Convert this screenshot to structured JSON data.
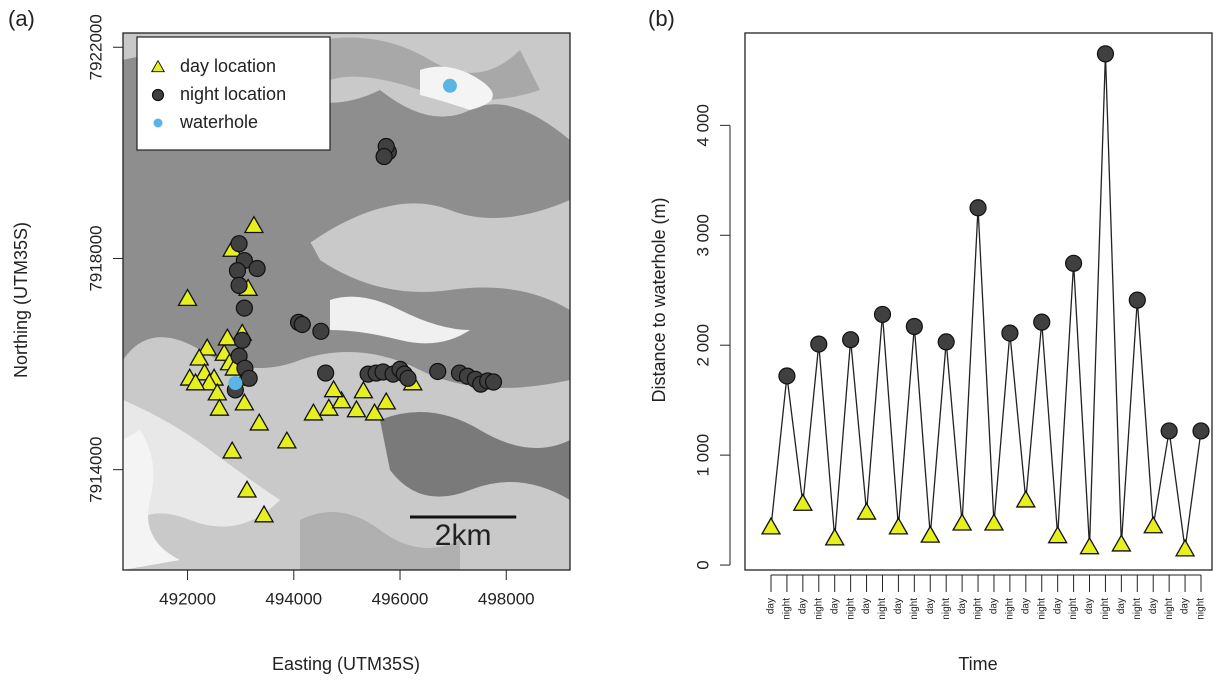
{
  "chart_data": [
    {
      "type": "scatter",
      "panel_label": "(a)",
      "x_label": "Easting (UTM35S)",
      "y_label": "Northing (UTM35S)",
      "xlim": [
        490785,
        499200
      ],
      "ylim": [
        7912100,
        7922270
      ],
      "xticks": [
        492000,
        494000,
        496000,
        498000
      ],
      "yticks": [
        7914000,
        7918000,
        7922000
      ],
      "legend": "top-left",
      "scale_bar": {
        "label": "2km",
        "length": 2000
      },
      "series": [
        {
          "name": "day location",
          "color": "#e6f01e",
          "marker": "triangle",
          "x": [
            493250,
            492840,
            493140,
            492000,
            493030,
            492370,
            492220,
            492320,
            492040,
            492500,
            492690,
            492790,
            492880,
            492410,
            492560,
            493070,
            492600,
            493070,
            493350,
            492840,
            493120,
            493440,
            493870,
            494370,
            494660,
            494900,
            494750,
            495180,
            495310,
            495520,
            495740,
            496240,
            492150,
            492750
          ],
          "y": [
            7918620,
            7918170,
            7917430,
            7917240,
            7916580,
            7916300,
            7916110,
            7915830,
            7915730,
            7915730,
            7916200,
            7916020,
            7915920,
            7915640,
            7915450,
            7915260,
            7915160,
            7915730,
            7914880,
            7914350,
            7913610,
            7913140,
            7914540,
            7915070,
            7915160,
            7915300,
            7915510,
            7915130,
            7915490,
            7915070,
            7915280,
            7915640,
            7915640,
            7916490
          ]
        },
        {
          "name": "night location",
          "color": "#404040",
          "marker": "circle",
          "x": [
            495780,
            495740,
            495700,
            492970,
            493070,
            492940,
            493310,
            492970,
            493070,
            493030,
            494090,
            494160,
            494510,
            494600,
            495400,
            495550,
            495680,
            495870,
            496000,
            496080,
            496150,
            496710,
            497120,
            497270,
            497420,
            497520,
            497650,
            497760,
            492970,
            493080,
            493160,
            492900
          ],
          "y": [
            7920020,
            7920120,
            7919930,
            7918280,
            7917960,
            7917770,
            7917810,
            7917490,
            7917060,
            7916450,
            7916790,
            7916750,
            7916620,
            7915830,
            7915810,
            7915830,
            7915850,
            7915810,
            7915900,
            7915810,
            7915730,
            7915860,
            7915830,
            7915770,
            7915710,
            7915620,
            7915680,
            7915660,
            7916150,
            7915920,
            7915730,
            7915510
          ]
        },
        {
          "name": "waterhole",
          "color": "#5ab4e6",
          "marker": "dot",
          "x": [
            496940,
            492900
          ],
          "y": [
            7921270,
            7915640
          ]
        }
      ]
    },
    {
      "type": "line",
      "panel_label": "(b)",
      "x_label": "Time",
      "y_label": "Distance to waterhole (m)",
      "categories": [
        "day",
        "night",
        "day",
        "night",
        "day",
        "night",
        "day",
        "night",
        "day",
        "night",
        "day",
        "night",
        "day",
        "night",
        "day",
        "night",
        "day",
        "night",
        "day",
        "night",
        "day",
        "night",
        "day",
        "night",
        "day",
        "night",
        "day",
        "night"
      ],
      "values": [
        345,
        1720,
        560,
        2010,
        245,
        2050,
        480,
        2280,
        345,
        2170,
        270,
        2030,
        380,
        3250,
        380,
        2110,
        590,
        2210,
        265,
        2745,
        165,
        4650,
        190,
        2410,
        355,
        1220,
        145,
        1220
      ],
      "ylim": [
        -45,
        4840
      ],
      "yticks": [
        0,
        {
          "value": 1000,
          "label": "1 000"
        },
        {
          "value": 2000,
          "label": "2 000"
        },
        {
          "value": 3000,
          "label": "3 000"
        },
        {
          "value": 4000,
          "label": "4 000"
        }
      ],
      "line_color": "#222222",
      "marker_colors": {
        "day": "#e6f01e",
        "night": "#404040"
      },
      "marker_shapes": {
        "day": "triangle",
        "night": "circle"
      }
    }
  ]
}
